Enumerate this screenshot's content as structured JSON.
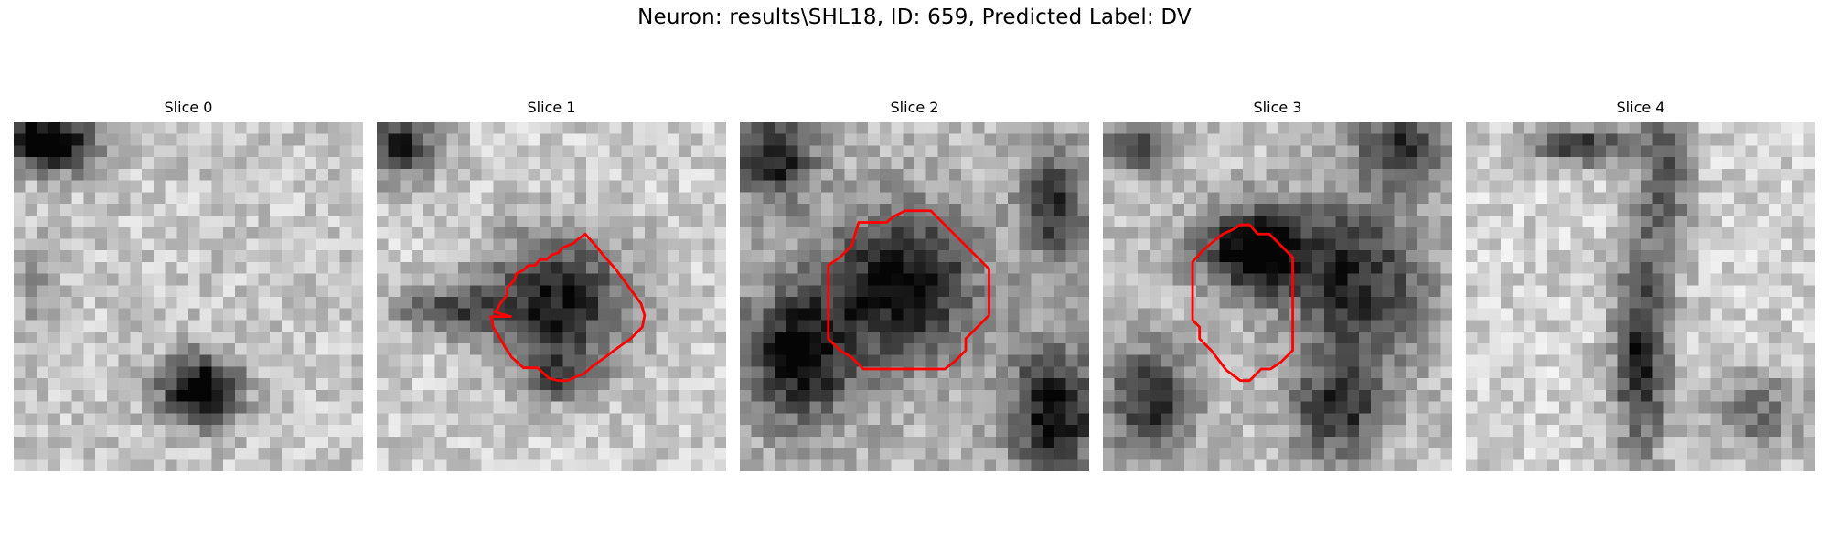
{
  "figure": {
    "title": "Neuron: results\\SHL18, ID: 659, Predicted Label: DV"
  },
  "slices": [
    {
      "title": "Slice 0",
      "contour": false
    },
    {
      "title": "Slice 1",
      "contour": true
    },
    {
      "title": "Slice 2",
      "contour": true
    },
    {
      "title": "Slice 3",
      "contour": true
    },
    {
      "title": "Slice 4",
      "contour": false
    }
  ],
  "colors": {
    "contour": "#ff0000",
    "background": "#ffffff"
  }
}
